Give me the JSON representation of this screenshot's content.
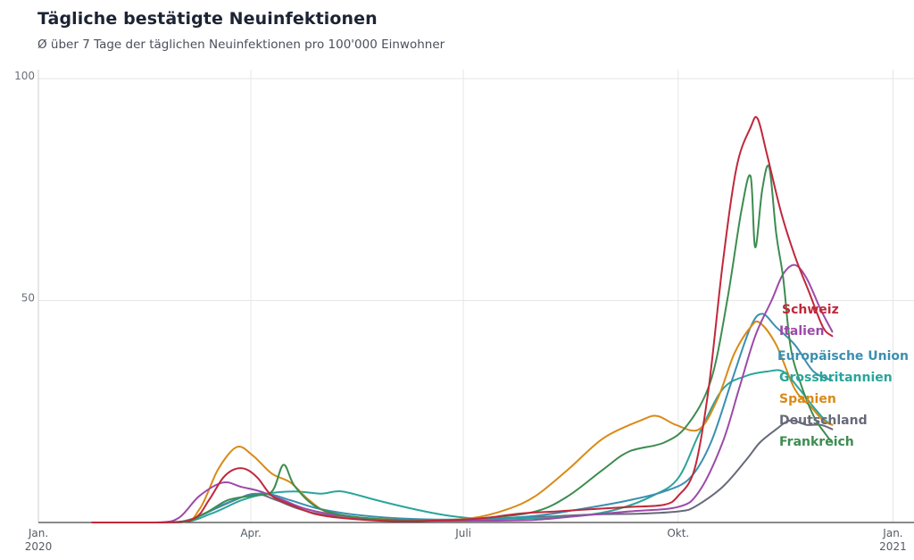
{
  "header": {
    "title": "Tägliche bestätigte Neuinfektionen",
    "subtitle": "Ø über 7 Tage der täglichen Neuinfektionen pro 100'000 Einwohner"
  },
  "chart_data": {
    "type": "line",
    "title": "Tägliche bestätigte Neuinfektionen",
    "subtitle": "Ø über 7 Tage der täglichen Neuinfektionen pro 100'000 Einwohner",
    "x_unit": "date",
    "xlim": [
      "2020-01-01",
      "2021-01-10"
    ],
    "ylim": [
      0,
      100
    ],
    "y_ticks": [
      100,
      50
    ],
    "x_ticks": [
      {
        "date": "2020-01-01",
        "label1": "Jan.",
        "label2": "2020"
      },
      {
        "date": "2020-04-01",
        "label1": "Apr.",
        "label2": ""
      },
      {
        "date": "2020-07-01",
        "label1": "Juli",
        "label2": ""
      },
      {
        "date": "2020-10-01",
        "label1": "Okt.",
        "label2": ""
      },
      {
        "date": "2021-01-01",
        "label1": "Jan.",
        "label2": "2021"
      }
    ],
    "grid": true,
    "legend": "direct labels at right end of lines",
    "series": [
      {
        "name": "Schweiz",
        "color": "#c0283b",
        "points": [
          [
            "2020-01-24",
            0
          ],
          [
            "2020-02-25",
            0
          ],
          [
            "2020-03-08",
            1
          ],
          [
            "2020-03-14",
            5
          ],
          [
            "2020-03-20",
            10
          ],
          [
            "2020-03-25",
            12
          ],
          [
            "2020-03-30",
            12
          ],
          [
            "2020-04-04",
            10
          ],
          [
            "2020-04-10",
            6
          ],
          [
            "2020-04-18",
            4
          ],
          [
            "2020-04-28",
            2
          ],
          [
            "2020-05-10",
            1
          ],
          [
            "2020-06-01",
            0.3
          ],
          [
            "2020-06-25",
            0.5
          ],
          [
            "2020-07-10",
            1
          ],
          [
            "2020-07-25",
            2
          ],
          [
            "2020-08-10",
            2.5
          ],
          [
            "2020-08-25",
            3
          ],
          [
            "2020-09-10",
            3.5
          ],
          [
            "2020-09-25",
            4
          ],
          [
            "2020-10-01",
            6
          ],
          [
            "2020-10-08",
            12
          ],
          [
            "2020-10-14",
            30
          ],
          [
            "2020-10-20",
            58
          ],
          [
            "2020-10-26",
            80
          ],
          [
            "2020-11-01",
            89
          ],
          [
            "2020-11-04",
            91
          ],
          [
            "2020-11-08",
            83
          ],
          [
            "2020-11-14",
            70
          ],
          [
            "2020-11-20",
            60
          ],
          [
            "2020-11-26",
            52
          ],
          [
            "2020-12-02",
            44
          ],
          [
            "2020-12-06",
            42
          ]
        ]
      },
      {
        "name": "Italien",
        "color": "#9c4aa8",
        "points": [
          [
            "2020-01-24",
            0
          ],
          [
            "2020-02-20",
            0
          ],
          [
            "2020-03-01",
            1
          ],
          [
            "2020-03-10",
            6
          ],
          [
            "2020-03-20",
            9
          ],
          [
            "2020-03-28",
            8
          ],
          [
            "2020-04-05",
            7
          ],
          [
            "2020-04-15",
            5
          ],
          [
            "2020-04-25",
            3
          ],
          [
            "2020-05-10",
            1.5
          ],
          [
            "2020-06-01",
            0.5
          ],
          [
            "2020-07-10",
            0.4
          ],
          [
            "2020-08-01",
            0.6
          ],
          [
            "2020-08-20",
            1.5
          ],
          [
            "2020-09-10",
            2.5
          ],
          [
            "2020-10-01",
            3.5
          ],
          [
            "2020-10-10",
            7
          ],
          [
            "2020-10-20",
            18
          ],
          [
            "2020-10-27",
            30
          ],
          [
            "2020-11-03",
            42
          ],
          [
            "2020-11-10",
            50
          ],
          [
            "2020-11-15",
            56
          ],
          [
            "2020-11-20",
            58
          ],
          [
            "2020-11-25",
            55
          ],
          [
            "2020-12-01",
            48
          ],
          [
            "2020-12-06",
            43
          ]
        ]
      },
      {
        "name": "Europäische Union",
        "color": "#3a8fb0",
        "points": [
          [
            "2020-01-24",
            0
          ],
          [
            "2020-02-25",
            0
          ],
          [
            "2020-03-08",
            1
          ],
          [
            "2020-03-20",
            4
          ],
          [
            "2020-03-30",
            6
          ],
          [
            "2020-04-08",
            6.5
          ],
          [
            "2020-04-18",
            5
          ],
          [
            "2020-05-01",
            3
          ],
          [
            "2020-05-20",
            1.5
          ],
          [
            "2020-06-15",
            0.7
          ],
          [
            "2020-07-10",
            0.8
          ],
          [
            "2020-08-01",
            1.5
          ],
          [
            "2020-08-20",
            3
          ],
          [
            "2020-09-10",
            5
          ],
          [
            "2020-09-25",
            7
          ],
          [
            "2020-10-06",
            10
          ],
          [
            "2020-10-15",
            18
          ],
          [
            "2020-10-24",
            32
          ],
          [
            "2020-11-01",
            44
          ],
          [
            "2020-11-06",
            47
          ],
          [
            "2020-11-12",
            44
          ],
          [
            "2020-11-20",
            40
          ],
          [
            "2020-11-28",
            34
          ],
          [
            "2020-12-06",
            32
          ]
        ]
      },
      {
        "name": "Grossbritannien",
        "color": "#2aa59a",
        "points": [
          [
            "2020-01-24",
            0
          ],
          [
            "2020-03-01",
            0
          ],
          [
            "2020-03-15",
            2
          ],
          [
            "2020-03-28",
            5
          ],
          [
            "2020-04-08",
            6.5
          ],
          [
            "2020-04-20",
            7
          ],
          [
            "2020-05-01",
            6.5
          ],
          [
            "2020-05-10",
            7
          ],
          [
            "2020-05-25",
            5
          ],
          [
            "2020-06-10",
            3
          ],
          [
            "2020-06-25",
            1.5
          ],
          [
            "2020-07-10",
            0.8
          ],
          [
            "2020-08-01",
            1
          ],
          [
            "2020-08-20",
            1.5
          ],
          [
            "2020-09-05",
            3
          ],
          [
            "2020-09-20",
            6
          ],
          [
            "2020-10-01",
            10
          ],
          [
            "2020-10-10",
            20
          ],
          [
            "2020-10-20",
            30
          ],
          [
            "2020-10-30",
            33
          ],
          [
            "2020-11-08",
            34
          ],
          [
            "2020-11-15",
            34
          ],
          [
            "2020-11-22",
            30
          ],
          [
            "2020-11-28",
            26
          ],
          [
            "2020-12-03",
            23
          ],
          [
            "2020-12-06",
            22
          ]
        ]
      },
      {
        "name": "Spanien",
        "color": "#d98a17",
        "points": [
          [
            "2020-01-24",
            0
          ],
          [
            "2020-03-01",
            0
          ],
          [
            "2020-03-10",
            3
          ],
          [
            "2020-03-18",
            12
          ],
          [
            "2020-03-26",
            17
          ],
          [
            "2020-04-02",
            15
          ],
          [
            "2020-04-10",
            11
          ],
          [
            "2020-04-18",
            9
          ],
          [
            "2020-04-26",
            5
          ],
          [
            "2020-05-05",
            2
          ],
          [
            "2020-05-20",
            1
          ],
          [
            "2020-06-15",
            0.5
          ],
          [
            "2020-07-05",
            1
          ],
          [
            "2020-07-20",
            3
          ],
          [
            "2020-08-01",
            6
          ],
          [
            "2020-08-15",
            12
          ],
          [
            "2020-08-30",
            19
          ],
          [
            "2020-09-15",
            23
          ],
          [
            "2020-09-22",
            24
          ],
          [
            "2020-09-30",
            22
          ],
          [
            "2020-10-10",
            21
          ],
          [
            "2020-10-18",
            28
          ],
          [
            "2020-10-25",
            38
          ],
          [
            "2020-11-01",
            44
          ],
          [
            "2020-11-05",
            45
          ],
          [
            "2020-11-12",
            40
          ],
          [
            "2020-11-20",
            30
          ],
          [
            "2020-11-27",
            26
          ],
          [
            "2020-12-02",
            23
          ],
          [
            "2020-12-06",
            22
          ]
        ]
      },
      {
        "name": "Deutschland",
        "color": "#666a79",
        "points": [
          [
            "2020-01-24",
            0
          ],
          [
            "2020-03-01",
            0
          ],
          [
            "2020-03-12",
            2
          ],
          [
            "2020-03-25",
            5
          ],
          [
            "2020-04-03",
            6.5
          ],
          [
            "2020-04-12",
            5
          ],
          [
            "2020-04-22",
            3
          ],
          [
            "2020-05-05",
            1.5
          ],
          [
            "2020-06-01",
            0.5
          ],
          [
            "2020-07-01",
            0.5
          ],
          [
            "2020-08-01",
            1.2
          ],
          [
            "2020-08-25",
            1.8
          ],
          [
            "2020-09-15",
            2
          ],
          [
            "2020-10-01",
            2.5
          ],
          [
            "2020-10-08",
            3.5
          ],
          [
            "2020-10-20",
            8
          ],
          [
            "2020-10-30",
            14
          ],
          [
            "2020-11-05",
            18
          ],
          [
            "2020-11-12",
            21
          ],
          [
            "2020-11-18",
            23
          ],
          [
            "2020-11-25",
            22
          ],
          [
            "2020-12-01",
            22
          ],
          [
            "2020-12-06",
            21
          ]
        ]
      },
      {
        "name": "Frankreich",
        "color": "#3d8c50",
        "points": [
          [
            "2020-01-24",
            0
          ],
          [
            "2020-03-01",
            0
          ],
          [
            "2020-03-12",
            2
          ],
          [
            "2020-03-22",
            5
          ],
          [
            "2020-04-01",
            6
          ],
          [
            "2020-04-10",
            7
          ],
          [
            "2020-04-15",
            13
          ],
          [
            "2020-04-20",
            8
          ],
          [
            "2020-05-01",
            3
          ],
          [
            "2020-05-20",
            1
          ],
          [
            "2020-06-15",
            0.5
          ],
          [
            "2020-07-10",
            1
          ],
          [
            "2020-08-01",
            2.5
          ],
          [
            "2020-08-15",
            6
          ],
          [
            "2020-08-30",
            12
          ],
          [
            "2020-09-10",
            16
          ],
          [
            "2020-09-25",
            18
          ],
          [
            "2020-10-05",
            22
          ],
          [
            "2020-10-15",
            32
          ],
          [
            "2020-10-22",
            50
          ],
          [
            "2020-10-28",
            70
          ],
          [
            "2020-11-01",
            78
          ],
          [
            "2020-11-03",
            62
          ],
          [
            "2020-11-06",
            75
          ],
          [
            "2020-11-09",
            80
          ],
          [
            "2020-11-12",
            65
          ],
          [
            "2020-11-15",
            55
          ],
          [
            "2020-11-18",
            40
          ],
          [
            "2020-11-22",
            32
          ],
          [
            "2020-11-28",
            24
          ],
          [
            "2020-12-03",
            20
          ],
          [
            "2020-12-06",
            18
          ]
        ]
      }
    ],
    "labels_order": [
      "Schweiz",
      "Italien",
      "Europäische Union",
      "Grossbritannien",
      "Spanien",
      "Deutschland",
      "Frankreich"
    ]
  }
}
